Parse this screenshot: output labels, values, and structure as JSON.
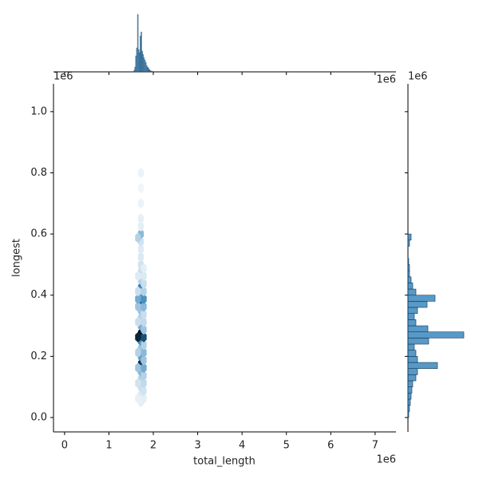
{
  "chart_data": {
    "type": "hexbin",
    "xlabel": "total_length",
    "ylabel": "longest",
    "x_offset_text": "1e6",
    "y_offset_text": "1e6",
    "top_marginal_offset_text": "1e6",
    "right_marginal_offset_text": "1e6",
    "xlim": [
      -0.25,
      7.47
    ],
    "ylim": [
      -0.047,
      1.091
    ],
    "xticks": [
      0,
      1,
      2,
      3,
      4,
      5,
      6,
      7
    ],
    "yticks": [
      {
        "value": 0,
        "label": "0.0"
      },
      0.2,
      0.4,
      0.6,
      0.8,
      {
        "value": 1,
        "label": "1.0"
      }
    ],
    "color": "#1f77b4",
    "hexbins": {
      "x": [
        1.72,
        1.72,
        1.72,
        1.72,
        1.72,
        1.72,
        1.72,
        1.72,
        1.72,
        1.72,
        1.72,
        1.72,
        1.72,
        1.72,
        1.72,
        1.72,
        1.72,
        1.72,
        1.72,
        1.72,
        1.72,
        1.72,
        1.72,
        1.72,
        1.72,
        1.72,
        1.72,
        1.72,
        1.785,
        1.785,
        1.785,
        1.785,
        1.785,
        1.785,
        1.785,
        1.785,
        1.785,
        1.785,
        1.785,
        1.785,
        1.785,
        1.785,
        1.785,
        1.785,
        1.785,
        1.785,
        1.655,
        1.655,
        1.655,
        1.655,
        1.655,
        1.655,
        1.655,
        1.655,
        1.655,
        1.655,
        1.655
      ],
      "y": [
        0.05,
        0.075,
        0.1,
        0.125,
        0.15,
        0.175,
        0.2,
        0.225,
        0.25,
        0.275,
        0.3,
        0.325,
        0.35,
        0.375,
        0.4,
        0.425,
        0.45,
        0.475,
        0.5,
        0.525,
        0.55,
        0.575,
        0.6,
        0.625,
        0.65,
        0.7,
        0.75,
        0.8,
        0.0625,
        0.0875,
        0.1125,
        0.1375,
        0.1625,
        0.1875,
        0.2125,
        0.2375,
        0.2625,
        0.2875,
        0.3125,
        0.3375,
        0.3625,
        0.3875,
        0.4125,
        0.4375,
        0.4625,
        0.4875,
        0.0625,
        0.1125,
        0.1625,
        0.2125,
        0.2625,
        0.3125,
        0.3625,
        0.3875,
        0.4125,
        0.4625,
        0.5875
      ],
      "counts": [
        3,
        6,
        10,
        15,
        25,
        85,
        35,
        20,
        40,
        100,
        30,
        15,
        20,
        60,
        35,
        45,
        15,
        10,
        8,
        6,
        5,
        8,
        25,
        4,
        3,
        2,
        1,
        2,
        4,
        8,
        12,
        15,
        30,
        20,
        25,
        15,
        70,
        20,
        12,
        10,
        25,
        40,
        15,
        10,
        6,
        4,
        3,
        8,
        20,
        15,
        90,
        10,
        20,
        30,
        10,
        5,
        15
      ]
    },
    "top_hist": {
      "bins": [
        1.56,
        1.58,
        1.6,
        1.62,
        1.64,
        1.66,
        1.68,
        1.7,
        1.72,
        1.74,
        1.76,
        1.78,
        1.8,
        1.82,
        1.84,
        1.86,
        1.88,
        1.9,
        1.92,
        1.94,
        1.96,
        1.98
      ],
      "counts": [
        2,
        6,
        20,
        30,
        72,
        28,
        24,
        45,
        50,
        26,
        22,
        18,
        15,
        12,
        8,
        6,
        5,
        3,
        2,
        1,
        1
      ],
      "count_lim": [
        0,
        75
      ]
    },
    "right_hist": {
      "bins": [
        0,
        0.02,
        0.04,
        0.06,
        0.08,
        0.1,
        0.12,
        0.14,
        0.16,
        0.18,
        0.2,
        0.22,
        0.24,
        0.26,
        0.28,
        0.3,
        0.32,
        0.34,
        0.36,
        0.38,
        0.4,
        0.42,
        0.44,
        0.46,
        0.48,
        0.5,
        0.52,
        0.54,
        0.56,
        0.58,
        0.6
      ],
      "counts": [
        1,
        2,
        3,
        4,
        5,
        6,
        10,
        12,
        37,
        12,
        10,
        8,
        26,
        70,
        25,
        10,
        8,
        12,
        24,
        34,
        10,
        6,
        4,
        2,
        2,
        1,
        0,
        0,
        2,
        4
      ],
      "count_lim": [
        0,
        73
      ]
    }
  }
}
